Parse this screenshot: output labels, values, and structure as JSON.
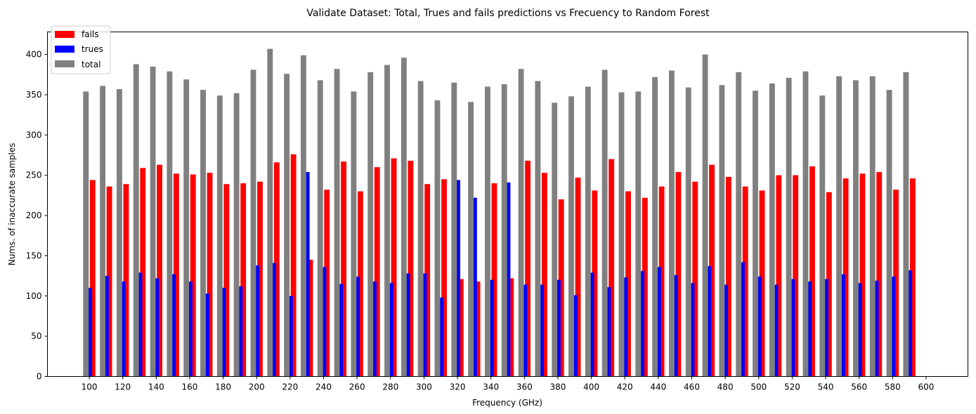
{
  "chart_data": {
    "type": "bar",
    "title": "Validate Dataset: Total, Trues and fails predictions vs Frecuency to Random Forest",
    "xlabel": "Frequency (GHz)",
    "ylabel": "Nums. of inaccurate samples",
    "xlim": [
      75,
      625
    ],
    "ylim": [
      0,
      428
    ],
    "x_ticks": [
      100,
      120,
      140,
      160,
      180,
      200,
      220,
      240,
      260,
      280,
      300,
      320,
      340,
      360,
      380,
      400,
      420,
      440,
      460,
      480,
      500,
      520,
      540,
      560,
      580,
      600
    ],
    "y_ticks": [
      0,
      50,
      100,
      150,
      200,
      250,
      300,
      350,
      400
    ],
    "grid": false,
    "legend_position": "top-left",
    "x": [
      100,
      110,
      120,
      130,
      140,
      150,
      160,
      170,
      180,
      190,
      200,
      210,
      220,
      230,
      240,
      250,
      260,
      270,
      280,
      290,
      300,
      310,
      320,
      330,
      340,
      350,
      360,
      370,
      380,
      390,
      400,
      410,
      420,
      430,
      440,
      450,
      460,
      470,
      480,
      490,
      500,
      510,
      520,
      530,
      540,
      550,
      560,
      570,
      580,
      590
    ],
    "series": [
      {
        "name": "fails",
        "color": "#ff0000",
        "offset": 2,
        "values": [
          244,
          236,
          239,
          259,
          263,
          252,
          251,
          253,
          239,
          240,
          242,
          266,
          276,
          145,
          232,
          267,
          230,
          260,
          271,
          268,
          239,
          245,
          121,
          118,
          240,
          122,
          268,
          253,
          220,
          247,
          231,
          270,
          230,
          222,
          236,
          254,
          242,
          263,
          248,
          236,
          231,
          250,
          250,
          261,
          229,
          246,
          252,
          254,
          232,
          246
        ]
      },
      {
        "name": "trues",
        "color": "#0000ff",
        "offset": 0,
        "values": [
          110,
          125,
          118,
          129,
          122,
          127,
          118,
          103,
          110,
          112,
          138,
          141,
          100,
          254,
          136,
          115,
          124,
          118,
          116,
          128,
          128,
          98,
          244,
          222,
          120,
          241,
          114,
          114,
          120,
          101,
          129,
          111,
          123,
          131,
          136,
          126,
          116,
          137,
          114,
          142,
          124,
          114,
          121,
          118,
          121,
          127,
          116,
          119,
          124,
          132
        ]
      },
      {
        "name": "total",
        "color": "#808080",
        "offset": -2,
        "values": [
          354,
          361,
          357,
          388,
          385,
          379,
          369,
          356,
          349,
          352,
          381,
          407,
          376,
          399,
          368,
          382,
          354,
          378,
          387,
          396,
          367,
          343,
          365,
          341,
          360,
          363,
          382,
          367,
          340,
          348,
          360,
          381,
          353,
          354,
          372,
          380,
          359,
          400,
          362,
          378,
          355,
          364,
          371,
          379,
          349,
          373,
          368,
          373,
          356,
          378
        ]
      }
    ],
    "legend": [
      "fails",
      "trues",
      "total"
    ]
  }
}
